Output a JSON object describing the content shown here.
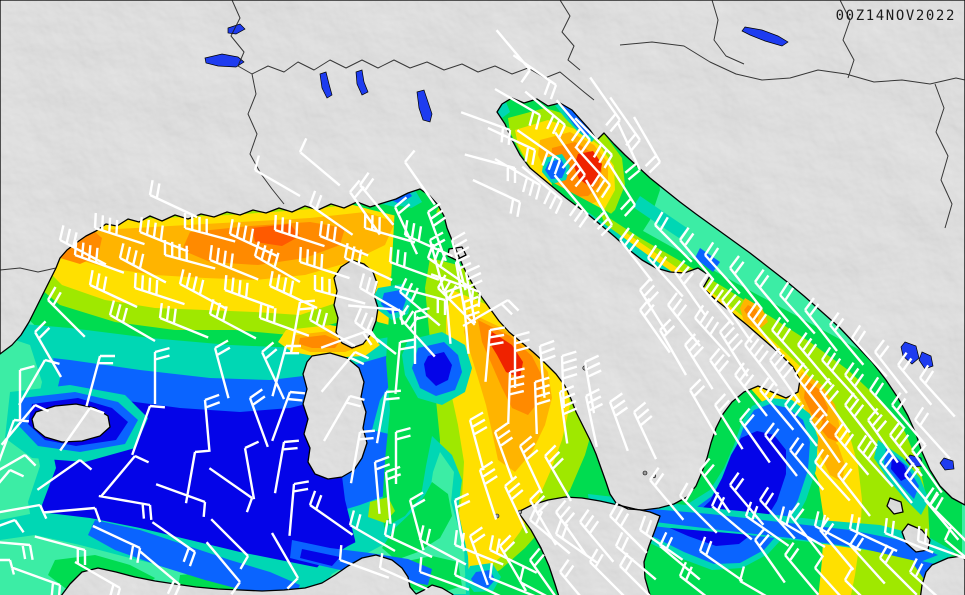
{
  "meta": {
    "timestamp": "00Z14NOV2022"
  },
  "palette": {
    "land": "#b6b6b6",
    "coast": "#000000",
    "border": "#1a1a1a",
    "lake": "#1e3cf0",
    "barb": "#ffffff",
    "timestamp_color": "#1b1b1b",
    "sea": {
      "calm": "#0404e8",
      "low": "#0a64ff",
      "turquoise": "#00d7b4",
      "mint": "#3ceda5",
      "green": "#00dc50",
      "chartreuse": "#9fe800",
      "yellow": "#ffe000",
      "amber": "#ffb400",
      "orange": "#ff8a00",
      "deep_orange": "#ff5a00",
      "red": "#ef2200"
    }
  },
  "barb_style": {
    "shaft_length": 52,
    "feather_length": 15,
    "feather_spacing": 7.5,
    "feather_angle_offset": -105
  },
  "wind_barbs": [
    [
      95,
      228,
      18,
      4
    ],
    [
      140,
      232,
      22,
      4
    ],
    [
      185,
      228,
      15,
      4
    ],
    [
      230,
      234,
      25,
      4
    ],
    [
      275,
      230,
      18,
      4
    ],
    [
      320,
      236,
      22,
      3
    ],
    [
      365,
      228,
      16,
      3
    ],
    [
      405,
      235,
      24,
      3
    ],
    [
      75,
      255,
      20,
      4
    ],
    [
      120,
      258,
      28,
      4
    ],
    [
      165,
      255,
      15,
      4
    ],
    [
      210,
      260,
      22,
      4
    ],
    [
      255,
      256,
      30,
      4
    ],
    [
      300,
      262,
      18,
      4
    ],
    [
      345,
      258,
      25,
      3
    ],
    [
      390,
      262,
      20,
      3
    ],
    [
      428,
      258,
      35,
      3
    ],
    [
      90,
      285,
      25,
      3
    ],
    [
      135,
      288,
      18,
      4
    ],
    [
      180,
      284,
      28,
      4
    ],
    [
      225,
      290,
      20,
      4
    ],
    [
      270,
      286,
      25,
      4
    ],
    [
      315,
      290,
      15,
      3
    ],
    [
      360,
      288,
      30,
      3
    ],
    [
      400,
      292,
      40,
      3
    ],
    [
      438,
      288,
      45,
      3
    ],
    [
      110,
      315,
      30,
      3
    ],
    [
      160,
      318,
      22,
      3
    ],
    [
      210,
      314,
      28,
      3
    ],
    [
      260,
      318,
      20,
      3
    ],
    [
      310,
      320,
      30,
      3
    ],
    [
      355,
      322,
      38,
      3
    ],
    [
      400,
      318,
      48,
      3
    ],
    [
      60,
      240,
      28,
      3
    ],
    [
      48,
      300,
      45,
      2
    ],
    [
      35,
      332,
      60,
      2
    ],
    [
      310,
      205,
      35,
      2
    ],
    [
      360,
      185,
      50,
      2
    ],
    [
      300,
      152,
      40,
      1
    ],
    [
      255,
      170,
      30,
      1
    ],
    [
      405,
      162,
      55,
      1
    ],
    [
      150,
      195,
      25,
      2
    ],
    [
      350,
      192,
      55,
      2
    ],
    [
      395,
      207,
      65,
      2
    ],
    [
      428,
      212,
      70,
      3
    ],
    [
      452,
      240,
      75,
      3
    ],
    [
      466,
      272,
      80,
      3
    ],
    [
      464,
      302,
      85,
      3
    ],
    [
      300,
      302,
      100,
      2
    ],
    [
      286,
      346,
      105,
      2
    ],
    [
      290,
      392,
      110,
      2
    ],
    [
      284,
      442,
      100,
      2
    ],
    [
      294,
      484,
      95,
      2
    ],
    [
      45,
      360,
      120,
      1
    ],
    [
      100,
      356,
      105,
      2
    ],
    [
      155,
      352,
      90,
      2
    ],
    [
      215,
      348,
      75,
      2
    ],
    [
      262,
      352,
      65,
      2
    ],
    [
      35,
      405,
      130,
      1
    ],
    [
      90,
      408,
      125,
      1
    ],
    [
      150,
      406,
      110,
      1
    ],
    [
      205,
      400,
      85,
      2
    ],
    [
      250,
      398,
      70,
      2
    ],
    [
      25,
      455,
      150,
      1
    ],
    [
      80,
      460,
      145,
      1
    ],
    [
      135,
      456,
      130,
      1
    ],
    [
      195,
      452,
      100,
      1
    ],
    [
      245,
      448,
      80,
      1
    ],
    [
      40,
      505,
      170,
      1
    ],
    [
      95,
      508,
      175,
      1
    ],
    [
      150,
      505,
      190,
      2
    ],
    [
      205,
      502,
      200,
      1
    ],
    [
      252,
      498,
      215,
      1
    ],
    [
      30,
      545,
      185,
      2
    ],
    [
      85,
      550,
      195,
      2
    ],
    [
      140,
      548,
      205,
      2
    ],
    [
      195,
      552,
      215,
      2
    ],
    [
      248,
      556,
      225,
      1
    ],
    [
      60,
      585,
      200,
      2
    ],
    [
      120,
      588,
      210,
      2
    ],
    [
      180,
      585,
      220,
      2
    ],
    [
      240,
      582,
      230,
      1
    ],
    [
      298,
      578,
      240,
      1
    ],
    [
      400,
      310,
      185,
      2
    ],
    [
      445,
      300,
      195,
      2
    ],
    [
      480,
      292,
      200,
      2
    ],
    [
      370,
      330,
      160,
      2
    ],
    [
      508,
      300,
      150,
      2
    ],
    [
      355,
      352,
      130,
      2
    ],
    [
      350,
      396,
      120,
      2
    ],
    [
      360,
      432,
      100,
      2
    ],
    [
      375,
      462,
      85,
      2
    ],
    [
      490,
      330,
      95,
      3
    ],
    [
      515,
      336,
      90,
      3
    ],
    [
      540,
      346,
      85,
      3
    ],
    [
      562,
      356,
      88,
      4
    ],
    [
      585,
      362,
      80,
      3
    ],
    [
      510,
      372,
      92,
      4
    ],
    [
      535,
      382,
      88,
      4
    ],
    [
      560,
      392,
      82,
      4
    ],
    [
      586,
      396,
      78,
      3
    ],
    [
      610,
      402,
      70,
      3
    ],
    [
      634,
      412,
      65,
      3
    ],
    [
      470,
      420,
      75,
      3
    ],
    [
      495,
      432,
      70,
      3
    ],
    [
      520,
      446,
      65,
      3
    ],
    [
      545,
      456,
      60,
      3
    ],
    [
      480,
      470,
      72,
      3
    ],
    [
      505,
      486,
      65,
      3
    ],
    [
      530,
      500,
      60,
      3
    ],
    [
      556,
      512,
      55,
      3
    ],
    [
      580,
      522,
      50,
      3
    ],
    [
      610,
      516,
      45,
      3
    ],
    [
      455,
      500,
      80,
      2
    ],
    [
      470,
      536,
      70,
      2
    ],
    [
      500,
      546,
      60,
      2
    ],
    [
      530,
      560,
      55,
      2
    ],
    [
      560,
      572,
      50,
      2
    ],
    [
      590,
      562,
      45,
      2
    ],
    [
      616,
      546,
      40,
      2
    ],
    [
      640,
      530,
      35,
      2
    ],
    [
      430,
      240,
      75,
      2
    ],
    [
      456,
      262,
      80,
      2
    ],
    [
      446,
      292,
      85,
      2
    ],
    [
      415,
      312,
      90,
      2
    ],
    [
      400,
      342,
      95,
      2
    ],
    [
      386,
      392,
      100,
      2
    ],
    [
      396,
      432,
      90,
      2
    ],
    [
      386,
      472,
      85,
      2
    ],
    [
      410,
      500,
      75,
      2
    ],
    [
      650,
      480,
      50,
      2
    ],
    [
      680,
      496,
      45,
      2
    ],
    [
      712,
      506,
      40,
      2
    ],
    [
      746,
      516,
      35,
      2
    ],
    [
      780,
      521,
      30,
      2
    ],
    [
      815,
      526,
      28,
      2
    ],
    [
      850,
      529,
      25,
      2
    ],
    [
      885,
      533,
      22,
      2
    ],
    [
      918,
      541,
      20,
      2
    ],
    [
      660,
      546,
      40,
      2
    ],
    [
      700,
      551,
      35,
      2
    ],
    [
      620,
      566,
      45,
      2
    ],
    [
      680,
      576,
      38,
      2
    ],
    [
      740,
      581,
      30,
      1
    ],
    [
      540,
      115,
      210,
      2
    ],
    [
      565,
      125,
      220,
      3
    ],
    [
      590,
      140,
      230,
      3
    ],
    [
      612,
      155,
      225,
      3
    ],
    [
      560,
      160,
      215,
      3
    ],
    [
      585,
      175,
      235,
      4
    ],
    [
      610,
      185,
      228,
      3
    ],
    [
      540,
      185,
      210,
      3
    ],
    [
      562,
      200,
      220,
      3
    ],
    [
      588,
      215,
      230,
      3
    ],
    [
      612,
      225,
      240,
      3
    ],
    [
      535,
      150,
      205,
      2
    ],
    [
      620,
      120,
      235,
      2
    ],
    [
      640,
      170,
      245,
      2
    ],
    [
      635,
      205,
      238,
      2
    ],
    [
      510,
      130,
      200,
      2
    ],
    [
      515,
      168,
      195,
      2
    ],
    [
      520,
      202,
      205,
      2
    ],
    [
      530,
      70,
      230,
      1
    ],
    [
      556,
      85,
      215,
      2
    ],
    [
      640,
      140,
      235,
      2
    ],
    [
      660,
      162,
      240,
      2
    ],
    [
      620,
      240,
      52,
      3
    ],
    [
      648,
      258,
      48,
      3
    ],
    [
      675,
      272,
      55,
      3
    ],
    [
      700,
      285,
      50,
      4
    ],
    [
      640,
      290,
      58,
      3
    ],
    [
      668,
      305,
      52,
      3
    ],
    [
      695,
      318,
      48,
      4
    ],
    [
      722,
      300,
      55,
      3
    ],
    [
      748,
      315,
      50,
      3
    ],
    [
      720,
      332,
      58,
      4
    ],
    [
      745,
      345,
      52,
      4
    ],
    [
      772,
      330,
      48,
      3
    ],
    [
      770,
      360,
      55,
      4
    ],
    [
      798,
      345,
      50,
      3
    ],
    [
      795,
      375,
      52,
      4
    ],
    [
      822,
      360,
      48,
      3
    ],
    [
      820,
      390,
      55,
      3
    ],
    [
      845,
      375,
      50,
      3
    ],
    [
      845,
      405,
      52,
      3
    ],
    [
      870,
      390,
      48,
      2
    ],
    [
      868,
      420,
      55,
      3
    ],
    [
      892,
      405,
      50,
      2
    ],
    [
      890,
      435,
      52,
      3
    ],
    [
      915,
      420,
      48,
      2
    ],
    [
      912,
      450,
      55,
      2
    ],
    [
      660,
      330,
      60,
      2
    ],
    [
      685,
      345,
      58,
      3
    ],
    [
      710,
      360,
      55,
      3
    ],
    [
      735,
      375,
      52,
      3
    ],
    [
      760,
      390,
      50,
      3
    ],
    [
      785,
      405,
      52,
      3
    ],
    [
      810,
      420,
      55,
      3
    ],
    [
      835,
      435,
      50,
      3
    ],
    [
      858,
      448,
      48,
      3
    ],
    [
      880,
      462,
      52,
      2
    ],
    [
      905,
      475,
      50,
      2
    ],
    [
      690,
      390,
      60,
      2
    ],
    [
      715,
      405,
      58,
      2
    ],
    [
      740,
      420,
      55,
      2
    ],
    [
      765,
      435,
      52,
      2
    ],
    [
      790,
      450,
      50,
      2
    ],
    [
      815,
      462,
      48,
      2
    ],
    [
      838,
      475,
      52,
      2
    ],
    [
      640,
      310,
      55,
      2
    ],
    [
      655,
      225,
      45,
      2
    ],
    [
      680,
      240,
      50,
      2
    ],
    [
      705,
      255,
      48,
      2
    ],
    [
      730,
      268,
      52,
      2
    ],
    [
      755,
      282,
      50,
      2
    ],
    [
      780,
      295,
      48,
      2
    ],
    [
      805,
      310,
      52,
      2
    ],
    [
      830,
      325,
      50,
      2
    ],
    [
      852,
      338,
      48,
      2
    ],
    [
      875,
      352,
      52,
      2
    ],
    [
      898,
      365,
      50,
      2
    ],
    [
      920,
      378,
      48,
      2
    ],
    [
      700,
      470,
      55,
      2
    ],
    [
      730,
      485,
      50,
      2
    ],
    [
      760,
      500,
      48,
      2
    ],
    [
      790,
      515,
      52,
      2
    ],
    [
      820,
      530,
      50,
      2
    ],
    [
      850,
      545,
      48,
      2
    ],
    [
      880,
      558,
      45,
      2
    ],
    [
      910,
      572,
      42,
      2
    ],
    [
      755,
      540,
      55,
      2
    ],
    [
      785,
      555,
      50,
      2
    ],
    [
      815,
      568,
      48,
      1
    ],
    [
      845,
      580,
      45,
      1
    ],
    [
      930,
      505,
      45,
      2
    ],
    [
      945,
      540,
      40,
      1
    ],
    [
      925,
      500,
      50,
      2
    ],
    [
      350,
      525,
      30,
      2
    ],
    [
      385,
      535,
      25,
      2
    ],
    [
      420,
      540,
      28,
      2
    ],
    [
      455,
      545,
      22,
      2
    ],
    [
      490,
      550,
      26,
      2
    ],
    [
      340,
      560,
      20,
      1
    ],
    [
      380,
      568,
      24,
      1
    ],
    [
      420,
      572,
      20,
      1
    ],
    [
      455,
      575,
      25,
      1
    ],
    [
      490,
      578,
      22,
      1
    ],
    [
      520,
      582,
      28,
      1
    ],
    [
      310,
      505,
      35,
      2
    ],
    [
      530,
      520,
      40,
      2
    ],
    [
      556,
      534,
      35,
      2
    ],
    [
      20,
      370,
      90,
      1
    ],
    [
      14,
      420,
      110,
      1
    ],
    [
      10,
      470,
      130,
      1
    ],
    [
      15,
      520,
      160,
      1
    ],
    [
      10,
      560,
      180,
      1
    ]
  ]
}
